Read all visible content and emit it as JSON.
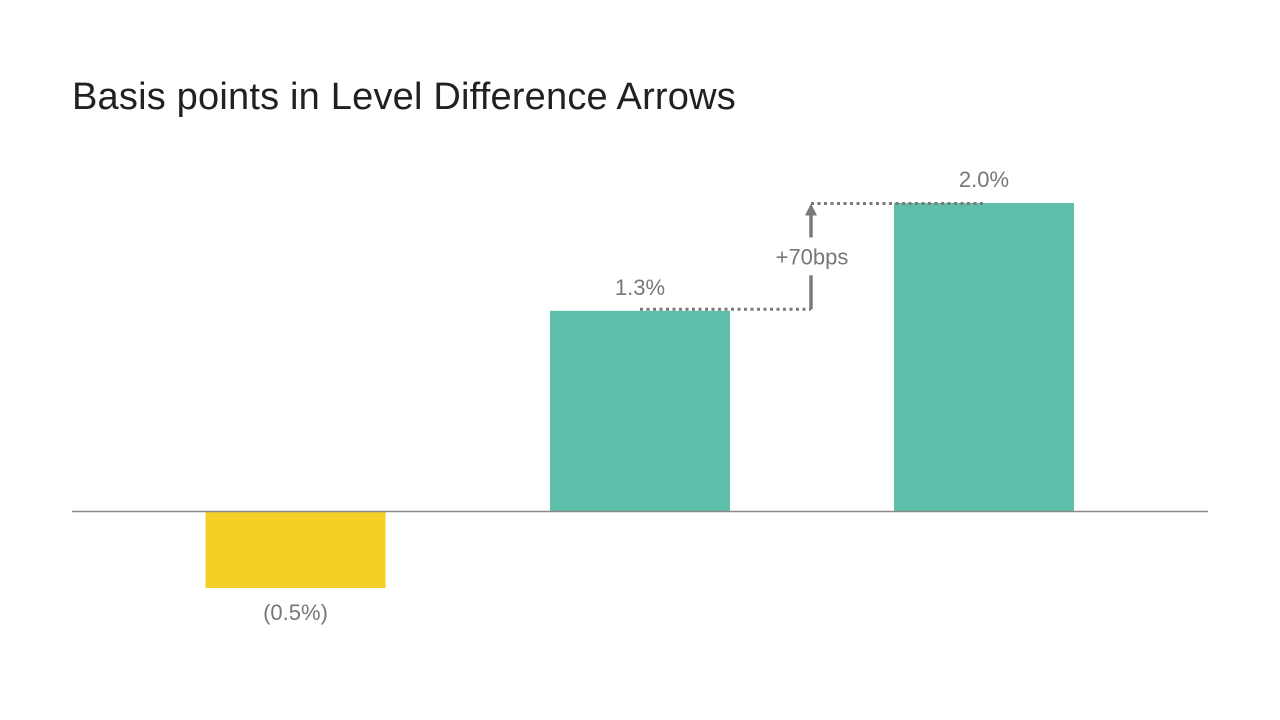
{
  "chart_data": {
    "type": "bar",
    "title": "Basis points in Level Difference Arrows",
    "categories": [
      "",
      "",
      ""
    ],
    "values": [
      -0.5,
      1.3,
      2.0
    ],
    "value_labels": [
      "(0.5%)",
      "1.3%",
      "2.0%"
    ],
    "bar_colors": [
      "#f4cf26",
      "#5dbea9",
      "#5dbea9"
    ],
    "xlabel": "",
    "ylabel": "",
    "ylim": [
      -0.7,
      2.2
    ],
    "grid": false,
    "legend": "none",
    "annotation": {
      "label": "+70bps",
      "from_index": 1,
      "to_index": 2,
      "color": "#7a7a7a"
    },
    "colors": {
      "axis": "#8a8a8a",
      "label": "#777777",
      "title": "#212121"
    }
  }
}
